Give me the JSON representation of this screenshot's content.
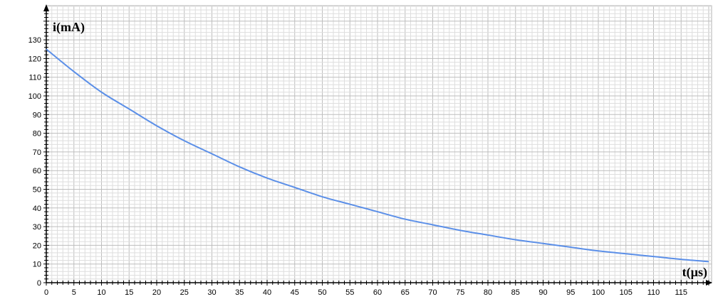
{
  "chart_data": {
    "type": "line",
    "title": "",
    "xlabel": "t(µs)",
    "ylabel": "i(mA)",
    "xlim": [
      0,
      120
    ],
    "ylim": [
      0,
      135
    ],
    "x_ticks": [
      0,
      5,
      10,
      15,
      20,
      25,
      30,
      35,
      40,
      45,
      50,
      55,
      60,
      65,
      70,
      75,
      80,
      85,
      90,
      95,
      100,
      105,
      110,
      115
    ],
    "y_ticks": [
      0,
      10,
      20,
      30,
      40,
      50,
      60,
      70,
      80,
      90,
      100,
      110,
      120,
      130
    ],
    "grid": true,
    "series": [
      {
        "color": "#5b8fe8",
        "x": [
          0,
          5,
          10,
          15,
          20,
          25,
          30,
          35,
          40,
          45,
          50,
          55,
          60,
          65,
          70,
          75,
          80,
          85,
          90,
          95,
          100,
          105,
          110,
          115,
          120
        ],
        "y": [
          125,
          113,
          102,
          93,
          84,
          76,
          69,
          62,
          56,
          51,
          46,
          42,
          38,
          34,
          31,
          28,
          25.5,
          23,
          21,
          19,
          17,
          15.5,
          14,
          12.5,
          11.3
        ]
      }
    ]
  }
}
